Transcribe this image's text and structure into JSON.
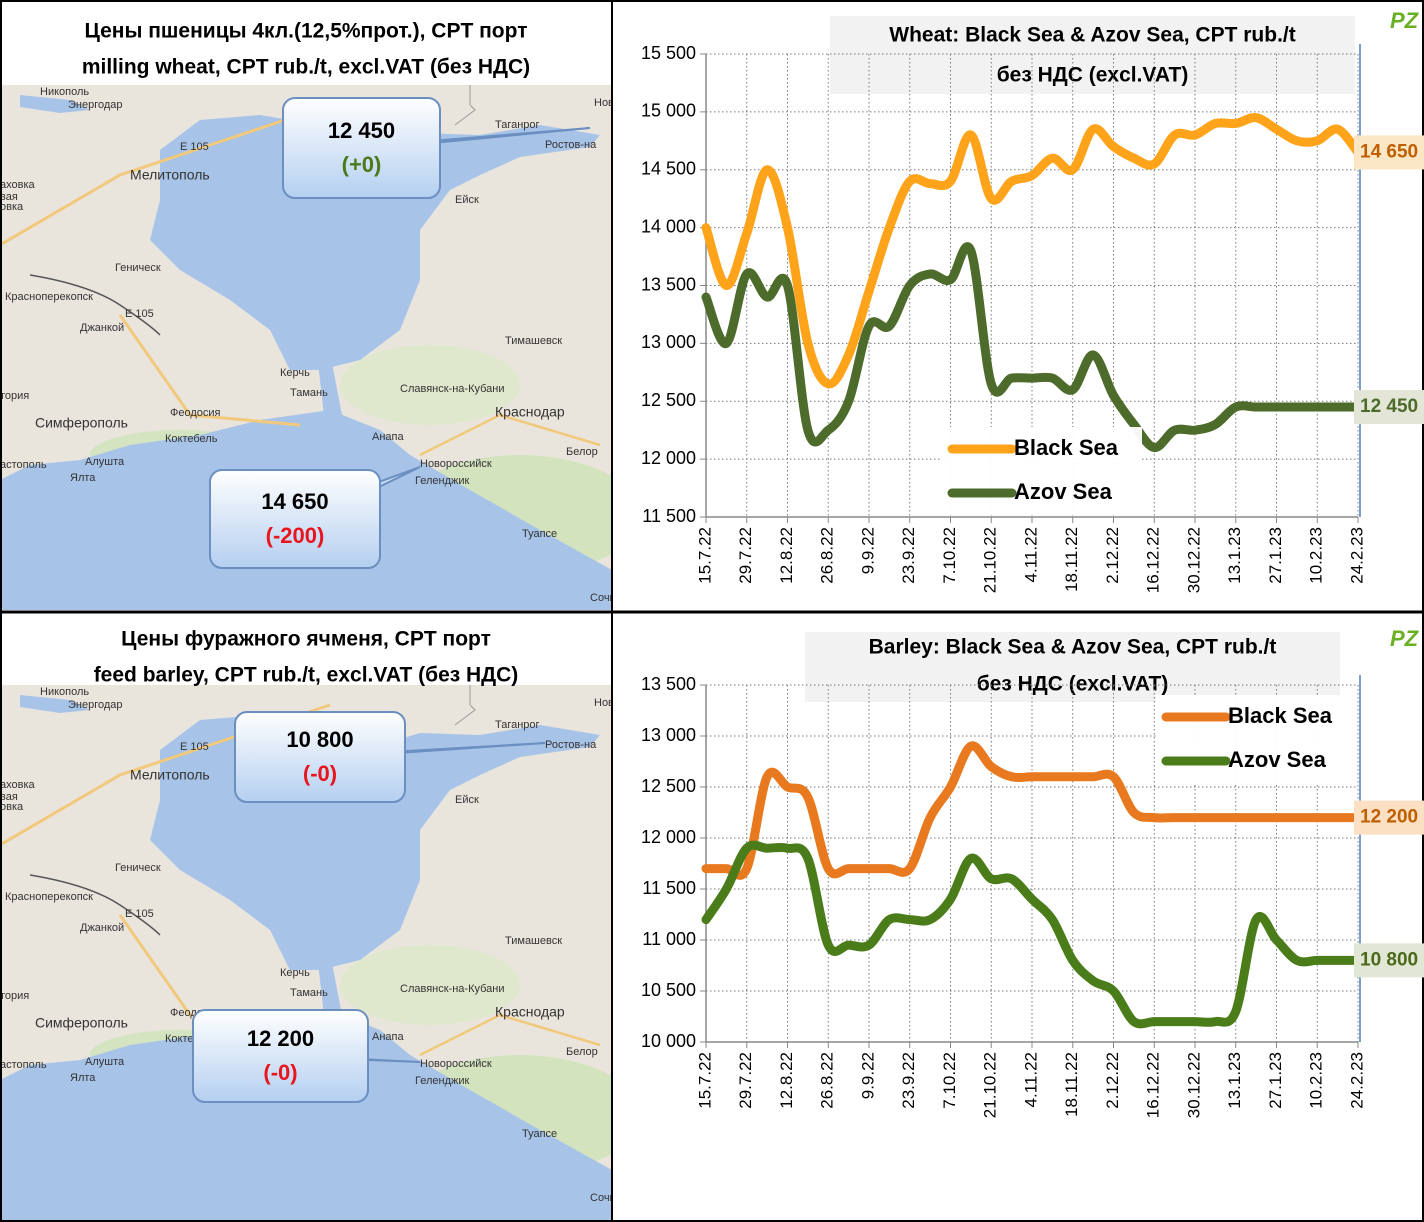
{
  "logo": "PZ",
  "maps": [
    {
      "title": [
        "Цены пшеницы 4кл.(12,5%прот.), CPT порт",
        "milling wheat, CPT rub./t, excl.VAT (без НДС)"
      ],
      "callouts": [
        {
          "value": "12 450",
          "change": "(+0)",
          "color": "#4a7a1a"
        },
        {
          "value": "14 650",
          "change": "(-200)",
          "color": "#e8141e"
        }
      ]
    },
    {
      "title": [
        "Цены фуражного ячменя, CPT порт",
        "feed barley, CPT rub./t, excl.VAT (без НДС)"
      ],
      "callouts": [
        {
          "value": "10 800",
          "change": "(-0)",
          "color": "#e8141e"
        },
        {
          "value": "12 200",
          "change": "(-0)",
          "color": "#e8141e"
        }
      ]
    }
  ],
  "map_labels": [
    "Никополь",
    "Энергодар",
    "Таганрог",
    "Ростов-на",
    "Нов",
    "Мелитополь",
    "Ейск",
    "E 105",
    "Геническ",
    "аховка",
    "вая",
    "овка",
    "Красноперекопск",
    "E 105",
    "Джанкой",
    "Тимашевск",
    "Керчь",
    "Тамань",
    "Славянск-на-Кубани",
    "тория",
    "Краснодар",
    "Феодосия",
    "Симферополь",
    "Коктебель",
    "Анапа",
    "Белор",
    "астополь",
    "Алушта",
    "Ялта",
    "Новороссийск",
    "Геленджик",
    "Туапсе",
    "Сочи"
  ],
  "chart_data": [
    {
      "type": "line",
      "title": [
        "Wheat: Black Sea & Azov Sea, CPT rub./t",
        "без НДС (excl.VAT)"
      ],
      "categories": [
        "15.7.22",
        null,
        "29.7.22",
        null,
        "12.8.22",
        null,
        "26.8.22",
        null,
        "9.9.22",
        null,
        "23.9.22",
        null,
        "7.10.22",
        null,
        "21.10.22",
        null,
        "4.11.22",
        null,
        "18.11.22",
        null,
        "2.12.22",
        null,
        "16.12.22",
        null,
        "30.12.22",
        null,
        "13.1.23",
        null,
        "27.1.23",
        null,
        "10.2.23",
        null,
        "24.2.23"
      ],
      "series": [
        {
          "name": "Black Sea",
          "color": "#ffa31a",
          "label_color": "#c05f00",
          "label_bg": "#fbe6c6",
          "values": [
            14000,
            13500,
            13950,
            14500,
            14000,
            13000,
            12650,
            12900,
            13450,
            14000,
            14400,
            14380,
            14400,
            14800,
            14250,
            14400,
            14450,
            14600,
            14500,
            14850,
            14700,
            14600,
            14550,
            14800,
            14800,
            14900,
            14900,
            14950,
            14850,
            14750,
            14750,
            14850,
            14650
          ],
          "value_labels": [
            null,
            null,
            null,
            null,
            null,
            null,
            null,
            null,
            null,
            null,
            null,
            null,
            null,
            null,
            null,
            null,
            null,
            null,
            null,
            null,
            null,
            null,
            null,
            null,
            null,
            null,
            null,
            null,
            null,
            null,
            null,
            null,
            "14 650"
          ]
        },
        {
          "name": "Azov Sea",
          "color": "#4d6b2a",
          "label_color": "#4d6b2a",
          "label_bg": "#e3e6d6",
          "values": [
            13400,
            13000,
            13600,
            13400,
            13500,
            12250,
            12250,
            12500,
            13150,
            13150,
            13500,
            13600,
            13550,
            13800,
            12650,
            12700,
            12700,
            12700,
            12600,
            12900,
            12550,
            12300,
            12100,
            12250,
            12250,
            12300,
            12450,
            12450,
            12450,
            12450,
            12450,
            12450,
            12450
          ],
          "value_labels": [
            null,
            null,
            null,
            null,
            null,
            null,
            null,
            null,
            null,
            null,
            null,
            null,
            null,
            null,
            null,
            null,
            null,
            null,
            null,
            null,
            null,
            null,
            null,
            null,
            null,
            null,
            null,
            null,
            null,
            null,
            null,
            null,
            "12 450"
          ]
        }
      ],
      "ylim": [
        11500,
        15500
      ],
      "yticks": [
        {
          "value": 11500,
          "label": "11 500"
        },
        {
          "value": 12000,
          "label": "12 000"
        },
        {
          "value": 12500,
          "label": "12 500"
        },
        {
          "value": 13000,
          "label": "13 000"
        },
        {
          "value": 13500,
          "label": "13 500"
        },
        {
          "value": 14000,
          "label": "14 000"
        },
        {
          "value": 14500,
          "label": "14 500"
        },
        {
          "value": 15000,
          "label": "15 000"
        },
        {
          "value": 15500,
          "label": "15 500"
        }
      ],
      "grid": true,
      "legend": "lower center"
    },
    {
      "type": "line",
      "title": [
        "Barley: Black Sea & Azov Sea, CPT rub./t",
        "без НДС (excl.VAT)"
      ],
      "categories": [
        "15.7.22",
        null,
        "29.7.22",
        null,
        "12.8.22",
        null,
        "26.8.22",
        null,
        "9.9.22",
        null,
        "23.9.22",
        null,
        "7.10.22",
        null,
        "21.10.22",
        null,
        "4.11.22",
        null,
        "18.11.22",
        null,
        "2.12.22",
        null,
        "16.12.22",
        null,
        "30.12.22",
        null,
        "13.1.23",
        null,
        "27.1.23",
        null,
        "10.2.23",
        null,
        "24.2.23"
      ],
      "series": [
        {
          "name": "Black Sea",
          "color": "#e8791e",
          "label_color": "#c05f00",
          "label_bg": "#fbe0c4",
          "values": [
            11700,
            11700,
            11700,
            12600,
            12500,
            12400,
            11700,
            11700,
            11700,
            11700,
            11700,
            12200,
            12500,
            12900,
            12700,
            12600,
            12600,
            12600,
            12600,
            12600,
            12600,
            12250,
            12200,
            12200,
            12200,
            12200,
            12200,
            12200,
            12200,
            12200,
            12200,
            12200,
            12200
          ],
          "value_labels": [
            null,
            null,
            null,
            null,
            null,
            null,
            null,
            null,
            null,
            null,
            null,
            null,
            null,
            null,
            null,
            null,
            null,
            null,
            null,
            null,
            null,
            null,
            null,
            null,
            null,
            null,
            null,
            null,
            null,
            null,
            null,
            null,
            "12 200"
          ]
        },
        {
          "name": "Azov Sea",
          "color": "#4a7d1a",
          "label_color": "#4a6a1a",
          "label_bg": "#e2e6d4",
          "values": [
            11200,
            11500,
            11900,
            11900,
            11900,
            11800,
            10950,
            10950,
            10950,
            11200,
            11200,
            11200,
            11400,
            11800,
            11600,
            11600,
            11400,
            11200,
            10800,
            10600,
            10500,
            10200,
            10200,
            10200,
            10200,
            10200,
            10300,
            11200,
            11000,
            10800,
            10800,
            10800,
            10800
          ],
          "value_labels": [
            null,
            null,
            null,
            null,
            null,
            null,
            null,
            null,
            null,
            null,
            null,
            null,
            null,
            null,
            null,
            null,
            null,
            null,
            null,
            null,
            null,
            null,
            null,
            null,
            null,
            null,
            null,
            null,
            null,
            null,
            null,
            null,
            "10 800"
          ]
        }
      ],
      "ylim": [
        10000,
        13500
      ],
      "yticks": [
        {
          "value": 10000,
          "label": "10 000"
        },
        {
          "value": 10500,
          "label": "10 500"
        },
        {
          "value": 11000,
          "label": "11 000"
        },
        {
          "value": 11500,
          "label": "11 500"
        },
        {
          "value": 12000,
          "label": "12 000"
        },
        {
          "value": 12500,
          "label": "12 500"
        },
        {
          "value": 13000,
          "label": "13 000"
        },
        {
          "value": 13500,
          "label": "13 500"
        }
      ],
      "grid": true,
      "legend": "upper right"
    }
  ]
}
